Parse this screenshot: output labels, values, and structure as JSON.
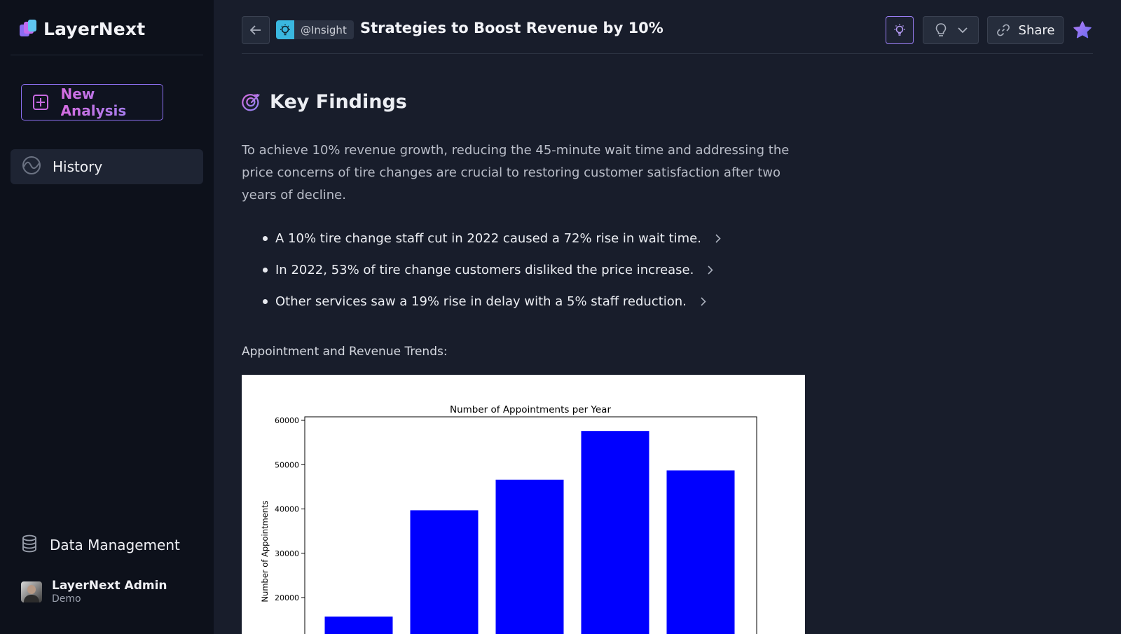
{
  "app": {
    "name": "LayerNext"
  },
  "sidebar": {
    "new_analysis_label": "New Analysis",
    "history_label": "History",
    "data_management_label": "Data Management",
    "user": {
      "name": "LayerNext Admin",
      "role": "Demo"
    }
  },
  "header": {
    "tag": "@Insight",
    "title": "Strategies to Boost Revenue by 10%",
    "share_label": "Share"
  },
  "content": {
    "section_title": "Key Findings",
    "summary": "To achieve 10% revenue growth, reducing the 45-minute wait time and addressing the price concerns of tire changes are crucial to restoring customer satisfaction after two years of decline.",
    "findings": [
      "A 10% tire change staff cut in 2022 caused a 72% rise in wait time.",
      "In 2022, 53% of tire change customers disliked the price increase.",
      "Other services saw a 19% rise in delay with a 5% staff reduction."
    ],
    "trends_label": "Appointment and Revenue Trends:"
  },
  "colors": {
    "accent": "#9b7ef5",
    "bar": "#0000ff",
    "tag_icon_bg": "#3ab8e0"
  },
  "chart_data": {
    "type": "bar",
    "title": "Number of Appointments per Year",
    "ylabel": "Number of Appointments",
    "xlabel": "",
    "categories": [
      "",
      "",
      "",
      "",
      ""
    ],
    "values": [
      15700,
      39700,
      46600,
      57600,
      48700
    ],
    "ylim": [
      0,
      61000
    ],
    "yticks": [
      20000,
      30000,
      40000,
      50000,
      60000
    ],
    "ytick_labels": [
      "20000",
      "30000",
      "40000",
      "50000",
      "60000"
    ],
    "grid": false
  }
}
